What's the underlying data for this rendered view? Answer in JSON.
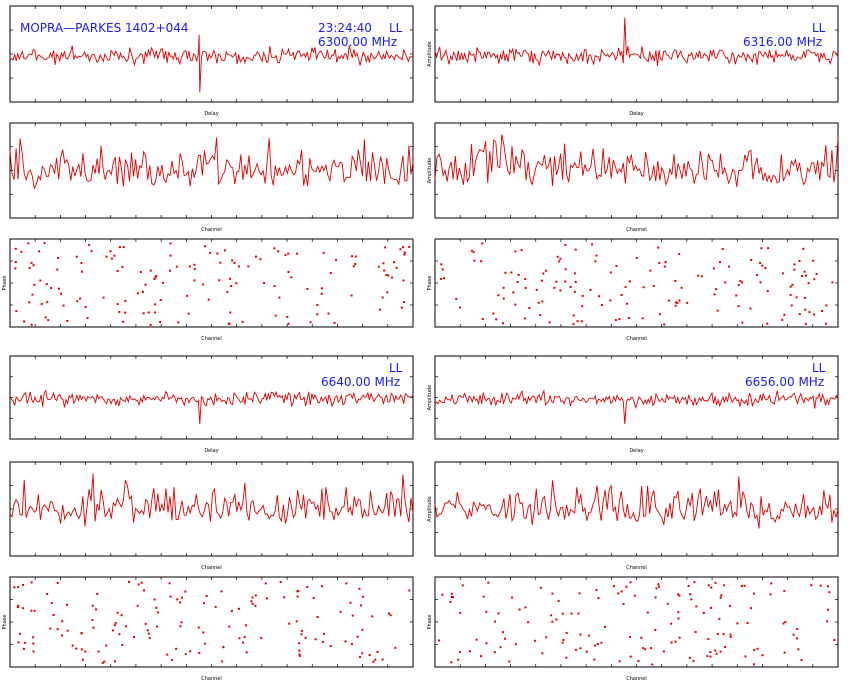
{
  "header": {
    "baseline": "MOPRA—PARKES 1402+044",
    "time": "23:24:40",
    "polarization": "LL",
    "frequencies": [
      "6300.00 MHz",
      "6316.00 MHz",
      "6640.00 MHz",
      "6656.00 MHz"
    ]
  },
  "colors": {
    "trace": "#e00000",
    "annotation": "#1a1aff",
    "axes": "#000000"
  },
  "chart_data": [
    {
      "type": "line",
      "panel": "delay",
      "band": 1,
      "title": "MOPRA—PARKES 1402+044",
      "time": "23:24:40",
      "pol": "LL",
      "freq": "6300.00 MHz",
      "xlabel": "Delay",
      "ylabel": "",
      "grid": false,
      "spike_position": 0.47,
      "spike": "up-down"
    },
    {
      "type": "line",
      "panel": "delay",
      "band": 2,
      "pol": "LL",
      "freq": "6316.00 MHz",
      "xlabel": "Delay",
      "ylabel": "Amplitude",
      "grid": false,
      "spike_position": 0.47,
      "spike": "up"
    },
    {
      "type": "line",
      "panel": "channel",
      "band": 1,
      "xlabel": "Channel",
      "ylabel": "",
      "grid": false
    },
    {
      "type": "line",
      "panel": "channel",
      "band": 2,
      "xlabel": "Channel",
      "ylabel": "Amplitude",
      "grid": false
    },
    {
      "type": "scatter",
      "panel": "phase",
      "band": 1,
      "xlabel": "Channel",
      "ylabel": "Phase",
      "grid": false
    },
    {
      "type": "scatter",
      "panel": "phase",
      "band": 2,
      "xlabel": "Channel",
      "ylabel": "Phase",
      "grid": false
    },
    {
      "type": "line",
      "panel": "delay",
      "band": 3,
      "pol": "LL",
      "freq": "6640.00 MHz",
      "xlabel": "Delay",
      "ylabel": "",
      "grid": false,
      "spike_position": 0.47,
      "spike": "down"
    },
    {
      "type": "line",
      "panel": "delay",
      "band": 4,
      "pol": "LL",
      "freq": "6656.00 MHz",
      "xlabel": "Delay",
      "ylabel": "Amplitude",
      "grid": false,
      "spike_position": 0.47,
      "spike": "down"
    },
    {
      "type": "line",
      "panel": "channel",
      "band": 3,
      "xlabel": "Channel",
      "ylabel": "",
      "grid": false
    },
    {
      "type": "line",
      "panel": "channel",
      "band": 4,
      "xlabel": "Channel",
      "ylabel": "Amplitude",
      "grid": false
    },
    {
      "type": "scatter",
      "panel": "phase",
      "band": 3,
      "xlabel": "Channel",
      "ylabel": "Phase",
      "grid": false
    },
    {
      "type": "scatter",
      "panel": "phase",
      "band": 4,
      "xlabel": "Channel",
      "ylabel": "Phase",
      "grid": false
    }
  ]
}
